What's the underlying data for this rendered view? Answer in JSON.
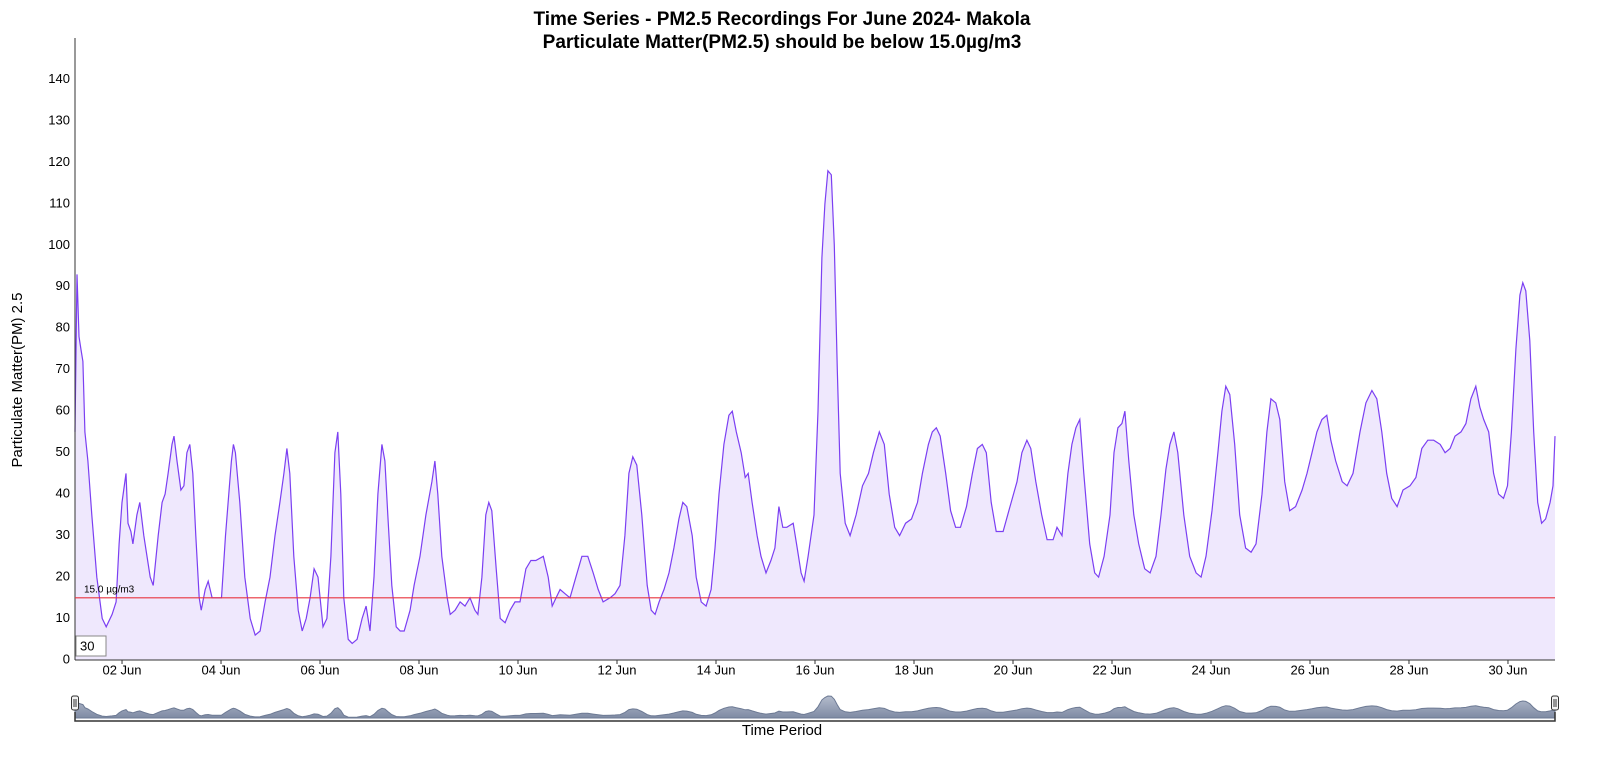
{
  "chart_data": {
    "type": "area",
    "title": "Time Series - PM2.5 Recordings For June 2024- Makola",
    "subtitle": "Particulate Matter(PM2.5) should be below 15.0µg/m3",
    "y_label": "Particulate Matter(PM) 2.5",
    "x_label": "Time Period",
    "zoom_input": "30",
    "color": "#7b3ff2",
    "fill_color": "#efe8fd",
    "navigator_color": "#6d7a94",
    "threshold": {
      "value": 15,
      "label": "15.0 µg/m3",
      "color": "#e8343e"
    },
    "xlim": [
      1.05,
      30.95
    ],
    "ylim": [
      0,
      150
    ],
    "xticks": [
      {
        "value": 2,
        "label": "02 Jun"
      },
      {
        "value": 4,
        "label": "04 Jun"
      },
      {
        "value": 6,
        "label": "06 Jun"
      },
      {
        "value": 8,
        "label": "08 Jun"
      },
      {
        "value": 10,
        "label": "10 Jun"
      },
      {
        "value": 12,
        "label": "12 Jun"
      },
      {
        "value": 14,
        "label": "14 Jun"
      },
      {
        "value": 16,
        "label": "16 Jun"
      },
      {
        "value": 18,
        "label": "18 Jun"
      },
      {
        "value": 20,
        "label": "20 Jun"
      },
      {
        "value": 22,
        "label": "22 Jun"
      },
      {
        "value": 24,
        "label": "24 Jun"
      },
      {
        "value": 26,
        "label": "26 Jun"
      },
      {
        "value": 28,
        "label": "28 Jun"
      },
      {
        "value": 30,
        "label": "30 Jun"
      }
    ],
    "yticks": [
      0,
      10,
      20,
      30,
      40,
      50,
      60,
      70,
      80,
      90,
      100,
      110,
      120,
      130,
      140
    ],
    "x": [
      1.05,
      1.09,
      1.13,
      1.17,
      1.21,
      1.25,
      1.31,
      1.39,
      1.49,
      1.6,
      1.68,
      1.8,
      1.88,
      1.94,
      2.0,
      2.08,
      2.12,
      2.18,
      2.22,
      2.3,
      2.36,
      2.44,
      2.57,
      2.63,
      2.73,
      2.81,
      2.87,
      2.93,
      3.01,
      3.05,
      3.11,
      3.19,
      3.25,
      3.31,
      3.37,
      3.43,
      3.49,
      3.56,
      3.6,
      3.68,
      3.74,
      3.82,
      3.89,
      4.01,
      4.09,
      4.21,
      4.25,
      4.29,
      4.38,
      4.48,
      4.59,
      4.69,
      4.79,
      4.89,
      4.99,
      5.09,
      5.19,
      5.27,
      5.33,
      5.39,
      5.47,
      5.56,
      5.64,
      5.72,
      5.8,
      5.88,
      5.96,
      6.06,
      6.14,
      6.22,
      6.3,
      6.36,
      6.42,
      6.48,
      6.57,
      6.65,
      6.75,
      6.85,
      6.93,
      7.01,
      7.09,
      7.17,
      7.25,
      7.31,
      7.37,
      7.45,
      7.54,
      7.62,
      7.7,
      7.82,
      7.9,
      8.02,
      8.14,
      8.26,
      8.32,
      8.38,
      8.46,
      8.57,
      8.63,
      8.73,
      8.83,
      8.93,
      9.03,
      9.13,
      9.19,
      9.27,
      9.35,
      9.41,
      9.47,
      9.56,
      9.64,
      9.74,
      9.84,
      9.94,
      10.04,
      10.16,
      10.26,
      10.36,
      10.51,
      10.61,
      10.69,
      10.77,
      10.85,
      10.95,
      11.05,
      11.17,
      11.29,
      11.41,
      11.52,
      11.62,
      11.72,
      11.86,
      11.96,
      12.06,
      12.16,
      12.24,
      12.32,
      12.4,
      12.5,
      12.61,
      12.69,
      12.77,
      12.85,
      12.95,
      13.05,
      13.15,
      13.25,
      13.33,
      13.41,
      13.52,
      13.6,
      13.7,
      13.8,
      13.9,
      13.98,
      14.06,
      14.16,
      14.26,
      14.33,
      14.41,
      14.51,
      14.59,
      14.65,
      14.73,
      14.83,
      14.91,
      15.01,
      15.11,
      15.19,
      15.27,
      15.35,
      15.43,
      15.56,
      15.64,
      15.72,
      15.78,
      15.86,
      15.98,
      16.06,
      16.14,
      16.2,
      16.26,
      16.33,
      16.39,
      16.45,
      16.51,
      16.61,
      16.71,
      16.83,
      16.96,
      17.08,
      17.18,
      17.3,
      17.4,
      17.5,
      17.61,
      17.71,
      17.83,
      17.95,
      18.07,
      18.17,
      18.29,
      18.37,
      18.45,
      18.53,
      18.64,
      18.74,
      18.84,
      18.94,
      19.06,
      19.18,
      19.28,
      19.38,
      19.46,
      19.56,
      19.66,
      19.8,
      19.94,
      20.08,
      20.18,
      20.28,
      20.36,
      20.46,
      20.58,
      20.69,
      20.81,
      20.89,
      20.99,
      21.11,
      21.19,
      21.27,
      21.35,
      21.43,
      21.55,
      21.65,
      21.73,
      21.84,
      21.96,
      22.04,
      22.12,
      22.2,
      22.26,
      22.34,
      22.44,
      22.54,
      22.66,
      22.77,
      22.89,
      22.99,
      23.09,
      23.17,
      23.25,
      23.33,
      23.45,
      23.57,
      23.7,
      23.8,
      23.9,
      24.02,
      24.14,
      24.22,
      24.3,
      24.38,
      24.48,
      24.58,
      24.7,
      24.81,
      24.91,
      25.03,
      25.13,
      25.21,
      25.31,
      25.39,
      25.49,
      25.59,
      25.71,
      25.84,
      25.94,
      26.04,
      26.14,
      26.24,
      26.34,
      26.42,
      26.52,
      26.65,
      26.75,
      26.87,
      27.01,
      27.13,
      27.25,
      27.35,
      27.45,
      27.55,
      27.65,
      27.76,
      27.88,
      28.02,
      28.14,
      28.26,
      28.38,
      28.5,
      28.63,
      28.73,
      28.83,
      28.93,
      29.05,
      29.15,
      29.25,
      29.35,
      29.43,
      29.51,
      29.61,
      29.71,
      29.81,
      29.91,
      29.99,
      30.07,
      30.16,
      30.24,
      30.3,
      30.36,
      30.44,
      30.52,
      30.6,
      30.68,
      30.76,
      30.85,
      30.91,
      30.95
    ],
    "values": [
      55,
      93,
      78,
      75,
      72,
      55,
      48,
      35,
      20,
      10,
      8,
      11,
      14,
      28,
      38,
      45,
      33,
      31,
      28,
      35,
      38,
      30,
      20,
      18,
      30,
      38,
      40,
      45,
      52,
      54,
      48,
      41,
      42,
      50,
      52,
      45,
      30,
      15,
      12,
      17,
      19,
      15,
      15,
      15,
      30,
      48,
      52,
      50,
      38,
      20,
      10,
      6,
      7,
      14,
      20,
      30,
      38,
      45,
      51,
      45,
      25,
      12,
      7,
      10,
      15,
      22,
      20,
      8,
      10,
      25,
      50,
      55,
      40,
      15,
      5,
      4,
      5,
      10,
      13,
      7,
      20,
      40,
      52,
      48,
      35,
      18,
      8,
      7,
      7,
      12,
      18,
      25,
      35,
      43,
      48,
      40,
      25,
      15,
      11,
      12,
      14,
      13,
      15,
      12,
      11,
      20,
      35,
      38,
      36,
      22,
      10,
      9,
      12,
      14,
      14,
      22,
      24,
      24,
      25,
      20,
      13,
      15,
      17,
      16,
      15,
      20,
      25,
      25,
      21,
      17,
      14,
      15,
      16,
      18,
      30,
      45,
      49,
      47,
      35,
      18,
      12,
      11,
      14,
      17,
      21,
      27,
      34,
      38,
      37,
      30,
      20,
      14,
      13,
      17,
      27,
      40,
      52,
      59,
      60,
      55,
      50,
      44,
      45,
      38,
      30,
      25,
      21,
      24,
      27,
      37,
      32,
      32,
      33,
      27,
      21,
      19,
      25,
      35,
      60,
      97,
      110,
      118,
      117,
      100,
      70,
      45,
      33,
      30,
      35,
      42,
      45,
      50,
      55,
      52,
      40,
      32,
      30,
      33,
      34,
      38,
      45,
      52,
      55,
      56,
      54,
      45,
      36,
      32,
      32,
      37,
      45,
      51,
      52,
      50,
      38,
      31,
      31,
      37,
      43,
      50,
      53,
      51,
      43,
      35,
      29,
      29,
      32,
      30,
      45,
      52,
      56,
      58,
      45,
      28,
      21,
      20,
      25,
      35,
      50,
      56,
      57,
      60,
      48,
      35,
      28,
      22,
      21,
      25,
      35,
      46,
      52,
      55,
      50,
      35,
      25,
      21,
      20,
      25,
      36,
      50,
      60,
      66,
      64,
      52,
      35,
      27,
      26,
      28,
      40,
      55,
      63,
      62,
      58,
      43,
      36,
      37,
      41,
      45,
      50,
      55,
      58,
      59,
      53,
      48,
      43,
      42,
      45,
      55,
      62,
      65,
      63,
      55,
      45,
      39,
      37,
      41,
      42,
      44,
      51,
      53,
      53,
      52,
      50,
      51,
      54,
      55,
      57,
      63,
      66,
      61,
      58,
      55,
      45,
      40,
      39,
      42,
      55,
      75,
      88,
      91,
      89,
      77,
      55,
      38,
      33,
      34,
      38,
      42,
      54
    ]
  }
}
